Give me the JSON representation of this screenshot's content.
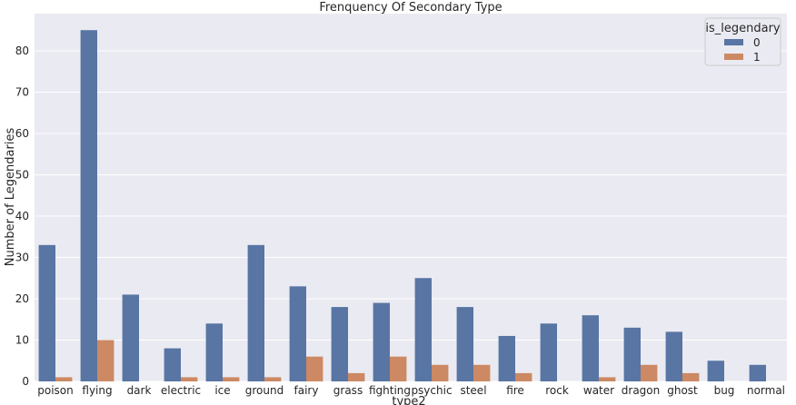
{
  "chart_data": {
    "type": "bar",
    "title": "Frenquency Of Secondary Type",
    "xlabel": "type2",
    "ylabel": "Number of Legendaries",
    "ylim": [
      0,
      89
    ],
    "yticks": [
      0,
      10,
      20,
      30,
      40,
      50,
      60,
      70,
      80
    ],
    "grid": true,
    "legend": {
      "title": "is_legendary",
      "placement": "top-right"
    },
    "categories": [
      "poison",
      "flying",
      "dark",
      "electric",
      "ice",
      "ground",
      "fairy",
      "grass",
      "fighting",
      "psychic",
      "steel",
      "fire",
      "rock",
      "water",
      "dragon",
      "ghost",
      "bug",
      "normal"
    ],
    "series": [
      {
        "name": "0",
        "color": "#5875a4",
        "values": [
          33,
          85,
          21,
          8,
          14,
          33,
          23,
          18,
          19,
          25,
          18,
          11,
          14,
          16,
          13,
          12,
          5,
          4
        ]
      },
      {
        "name": "1",
        "color": "#cc8963",
        "values": [
          1,
          10,
          0,
          1,
          1,
          1,
          6,
          2,
          6,
          4,
          4,
          2,
          0,
          1,
          4,
          2,
          0,
          0
        ]
      }
    ]
  }
}
